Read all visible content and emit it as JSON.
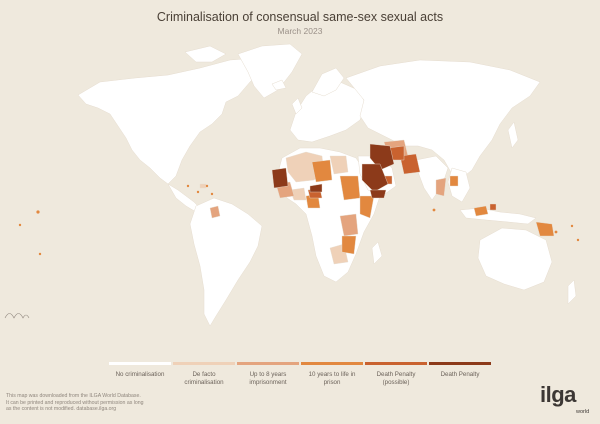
{
  "header": {
    "title": "Criminalisation of consensual same-sex sexual acts",
    "subtitle": "March 2023"
  },
  "colors": {
    "background": "#efe9dd",
    "no_criminalisation": "#ffffff",
    "de_facto": "#efd1b8",
    "up_to_8": "#e4a47e",
    "ten_to_life": "#e2883f",
    "death_possible": "#c9622f",
    "death": "#8c3a1a"
  },
  "legend": {
    "items": [
      {
        "label": "No criminalisation",
        "color": "#ffffff"
      },
      {
        "label": "De facto\ncriminalisation",
        "color": "#efd1b8"
      },
      {
        "label": "Up to 8 years\nimprisonment",
        "color": "#e4a47e"
      },
      {
        "label": "10 years to life in\nprison",
        "color": "#e2883f"
      },
      {
        "label": "Death Penalty\n(possible)",
        "color": "#c9622f"
      },
      {
        "label": "Death Penalty",
        "color": "#8c3a1a"
      }
    ]
  },
  "footer": {
    "text": "This map was downloaded from the ILGA World Database.\nIt can be printed and reproduced without permission as long\nas the content is not modified.  database.ilga.org"
  },
  "logo": {
    "word": "ilga",
    "sub": "world"
  }
}
